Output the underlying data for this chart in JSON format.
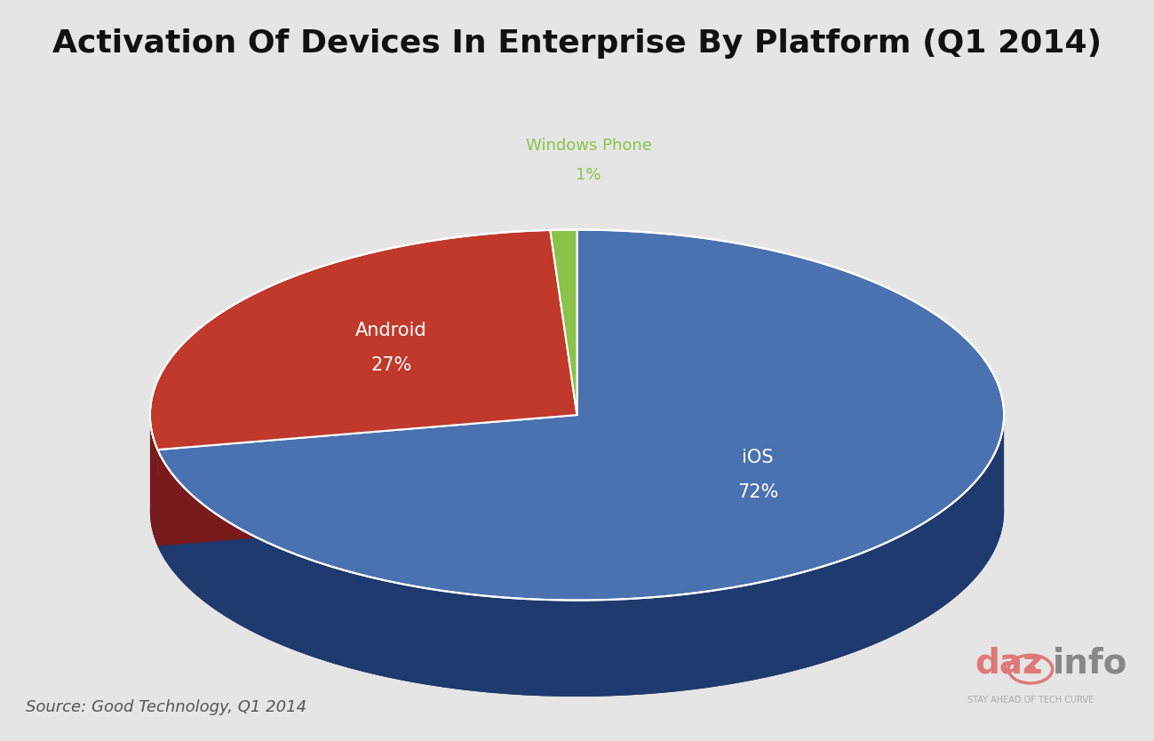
{
  "title": "Activation Of Devices In Enterprise By Platform (Q1 2014)",
  "slices": [
    72,
    27,
    1
  ],
  "labels": [
    "iOS",
    "Android",
    "Windows Phone"
  ],
  "percentages": [
    "72%",
    "27%",
    "1%"
  ],
  "colors_top": [
    "#4a72b0",
    "#c0392b",
    "#8bc34a"
  ],
  "colors_side": [
    "#1e3a6e",
    "#7b1a1a",
    "#3a6010"
  ],
  "background_color": "#e5e5e5",
  "title_fontsize": 26,
  "source_text": "Source: Good Technology, Q1 2014",
  "label_text_colors": [
    "#ffffff",
    "#ffffff",
    "#8bc34a"
  ],
  "startangle_deg": 90
}
